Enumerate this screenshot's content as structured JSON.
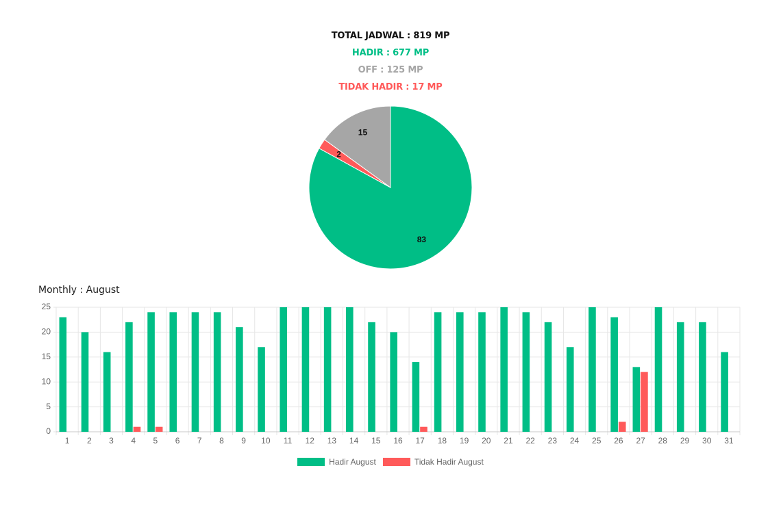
{
  "summary": {
    "total": "TOTAL JADWAL : 819 MP",
    "hadir": "HADIR : 677 MP",
    "off": "OFF : 125 MP",
    "tidak_hadir": "TIDAK HADIR : 17 MP"
  },
  "colors": {
    "hadir": "#00be86",
    "off": "#a6a6a6",
    "tidak_hadir": "#ff5a5a",
    "total": "#111111"
  },
  "monthly": {
    "title": "Monthly : August"
  },
  "chart_data": [
    {
      "type": "pie",
      "start": "top",
      "direction": "clockwise",
      "slices": [
        {
          "label": "83",
          "value": 83,
          "color": "#00be86"
        },
        {
          "label": "2",
          "value": 2,
          "color": "#ff5a5a"
        },
        {
          "label": "15",
          "value": 15,
          "color": "#a6a6a6"
        }
      ]
    },
    {
      "type": "bar",
      "categories": [
        "1",
        "2",
        "3",
        "4",
        "5",
        "6",
        "7",
        "8",
        "9",
        "10",
        "11",
        "12",
        "13",
        "14",
        "15",
        "16",
        "17",
        "18",
        "19",
        "20",
        "21",
        "22",
        "23",
        "24",
        "25",
        "26",
        "27",
        "28",
        "29",
        "30",
        "31"
      ],
      "ylim": [
        0,
        25
      ],
      "yticks": [
        0,
        5,
        10,
        15,
        20,
        25
      ],
      "grid": true,
      "legend_position": "bottom",
      "series": [
        {
          "name": "Hadir August",
          "color": "#00be86",
          "values": [
            23,
            20,
            16,
            22,
            24,
            24,
            24,
            24,
            21,
            17,
            25,
            25,
            25,
            25,
            22,
            20,
            14,
            24,
            24,
            24,
            25,
            24,
            22,
            17,
            25,
            23,
            13,
            25,
            22,
            22,
            16
          ]
        },
        {
          "name": "Tidak Hadir August",
          "color": "#ff5a5a",
          "values": [
            0,
            0,
            0,
            1,
            1,
            0,
            0,
            0,
            0,
            0,
            0,
            0,
            0,
            0,
            0,
            0,
            1,
            0,
            0,
            0,
            0,
            0,
            0,
            0,
            0,
            2,
            12,
            0,
            0,
            0,
            0
          ]
        }
      ]
    }
  ]
}
